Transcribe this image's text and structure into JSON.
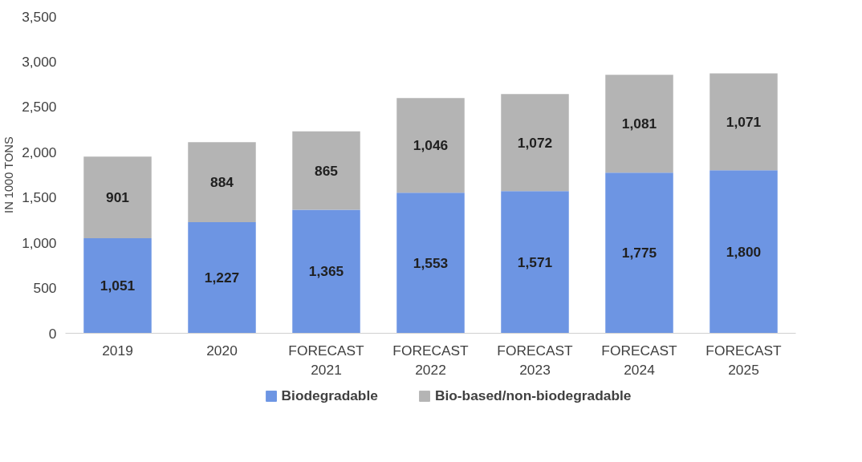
{
  "chart_data": {
    "type": "bar",
    "stacked": true,
    "ylabel": "IN 1000 TONS",
    "categories": [
      "2019",
      "2020",
      "FORECAST\n2021",
      "FORECAST\n2022",
      "FORECAST\n2023",
      "FORECAST\n2024",
      "FORECAST\n2025"
    ],
    "series": [
      {
        "name": "Biodegradable",
        "color": "#6d95e3",
        "values": [
          1051,
          1227,
          1365,
          1553,
          1571,
          1775,
          1800
        ],
        "value_labels": [
          "1,051",
          "1,227",
          "1,365",
          "1,553",
          "1,571",
          "1,775",
          "1,800"
        ]
      },
      {
        "name": "Bio-based/non-biodegradable",
        "color": "#b4b4b4",
        "values": [
          901,
          884,
          865,
          1046,
          1072,
          1081,
          1071
        ],
        "value_labels": [
          "901",
          "884",
          "865",
          "1,046",
          "1,072",
          "1,081",
          "1,071"
        ]
      }
    ],
    "ylim": [
      0,
      3500
    ],
    "yticks": [
      {
        "value": 0,
        "label": "0"
      },
      {
        "value": 500,
        "label": "500"
      },
      {
        "value": 1000,
        "label": "1,000"
      },
      {
        "value": 1500,
        "label": "1,500"
      },
      {
        "value": 2000,
        "label": "2,000"
      },
      {
        "value": 2500,
        "label": "2,500"
      },
      {
        "value": 3000,
        "label": "3,000"
      },
      {
        "value": 3500,
        "label": "3,500"
      }
    ],
    "grid": false,
    "legend": "bottom"
  }
}
